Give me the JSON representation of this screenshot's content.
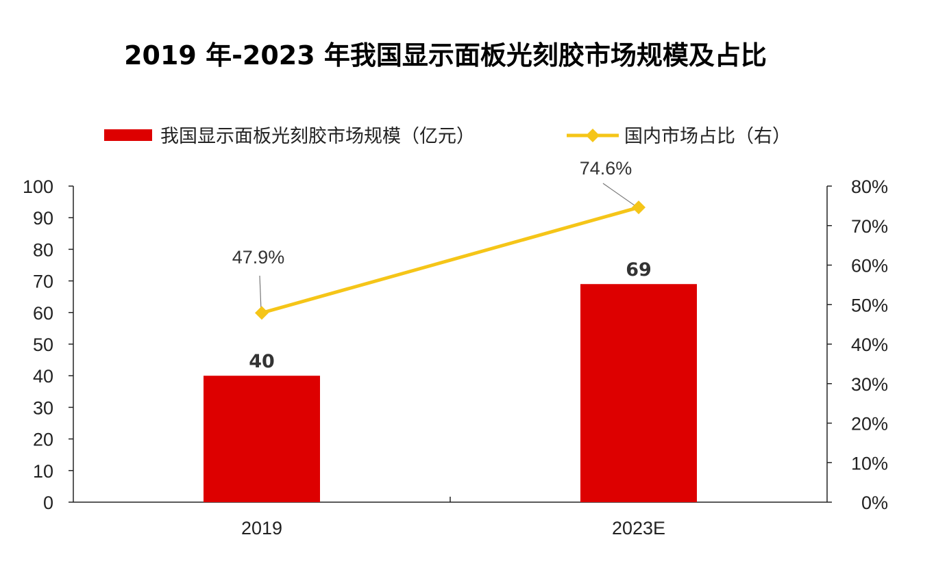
{
  "chart_data": {
    "type": "bar+line",
    "title": "2019 年-2023 年我国显示面板光刻胶市场规模及占比",
    "categories": [
      "2019",
      "2023E"
    ],
    "series": [
      {
        "name": "我国显示面板光刻胶市场规模（亿元）",
        "type": "bar",
        "axis": "left",
        "color": "#dd0000",
        "values": [
          40,
          69
        ],
        "labels": [
          "40",
          "69"
        ]
      },
      {
        "name": "国内市场占比（右）",
        "type": "line",
        "axis": "right",
        "color": "#f5c518",
        "marker": "diamond",
        "values": [
          47.9,
          74.6
        ],
        "labels": [
          "47.9%",
          "74.6%"
        ]
      }
    ],
    "left_axis": {
      "min": 0,
      "max": 100,
      "ticks": [
        "0",
        "10",
        "20",
        "30",
        "40",
        "50",
        "60",
        "70",
        "80",
        "90",
        "100"
      ]
    },
    "right_axis": {
      "min": 0,
      "max": 80,
      "unit": "%",
      "ticks": [
        "0%",
        "10%",
        "20%",
        "30%",
        "40%",
        "50%",
        "60%",
        "70%",
        "80%"
      ]
    },
    "grid": false,
    "legend_position": "top"
  }
}
